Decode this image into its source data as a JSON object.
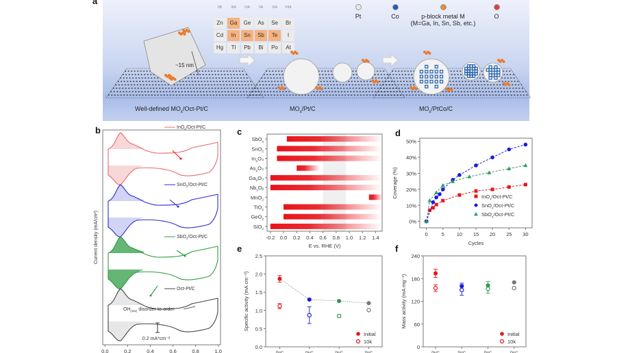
{
  "panel_a": {
    "label": "a",
    "periodic_table": {
      "headers": [
        "IIB",
        "IIIA",
        "IVA",
        "VA",
        "VIA",
        "VIIA"
      ],
      "rows": [
        [
          "Zn",
          "Ga",
          "Ge",
          "As",
          "Se",
          "Br"
        ],
        [
          "Cd",
          "In",
          "Sn",
          "Sb",
          "Te",
          "I"
        ],
        [
          "Hg",
          "Tl",
          "Pb",
          "Bi",
          "Po",
          "At"
        ]
      ],
      "highlighted": [
        "Ga",
        "In",
        "Sn",
        "Sb",
        "Te"
      ]
    },
    "legend": [
      {
        "symbol": "Pt",
        "color": "#e8e8e8"
      },
      {
        "symbol": "Co",
        "color": "#1f5fae"
      },
      {
        "symbol": "p-block metal M",
        "sub": "(M=Ga, In, Sn, Sb, etc.)",
        "color": "#e88a3a"
      },
      {
        "symbol": "O",
        "color": "#e23b3b"
      }
    ],
    "size_annotation": "~15 nm",
    "stages": [
      {
        "caption_pre": "Well-defined MO",
        "caption_sub": "x",
        "caption_post": "/Oct-Pt/C"
      },
      {
        "caption_pre": "MO",
        "caption_sub": "x",
        "caption_post": "/Pt/C"
      },
      {
        "caption_pre": "MO",
        "caption_sub": "x",
        "caption_post": "/PtCo/C"
      }
    ]
  },
  "chart_data": [
    {
      "panel": "b",
      "type": "line",
      "title": "",
      "xlabel": "",
      "ylabel": "Current density (mA/cm²)",
      "xlim": [
        0.0,
        1.0
      ],
      "xticks": [
        "0.0",
        "0.2",
        "0.4",
        "0.6",
        "0.8",
        "1.0"
      ],
      "series": [
        {
          "name": "InOx/Oct-Pt/C",
          "name_pre": "InO",
          "name_sub": "x",
          "name_post": "/Oct-Pt/C",
          "color": "#e8686a",
          "fill": "#f6d0d0"
        },
        {
          "name": "SnOx/Oct-Pt/C",
          "name_pre": "SnO",
          "name_sub": "x",
          "name_post": "/Oct-Pt/C",
          "color": "#2a2ad0",
          "fill": "#c9cdf3"
        },
        {
          "name": "SbOx/Oct-Pt/C",
          "name_pre": "SbO",
          "name_sub": "x",
          "name_post": "/Oct-Pt/C",
          "color": "#2e9a3e",
          "fill": "#4aa95c"
        },
        {
          "name": "Oct-Pt/C",
          "name_pre": "Oct-Pt/C",
          "name_sub": "",
          "name_post": "",
          "color": "#444444",
          "fill": "#e3e3e3"
        }
      ],
      "annotations": {
        "oh_label_pre": "OH",
        "oh_label_sub": "(111)",
        "oh_label_post": " disorder-to-order",
        "scale_bar": "0.2 mA*cm⁻²"
      }
    },
    {
      "panel": "c",
      "type": "bar",
      "xlabel": "E vs. RHE (V)",
      "xlim": [
        -0.25,
        1.5
      ],
      "xticks": [
        -0.2,
        0.0,
        0.2,
        0.4,
        0.6,
        0.8,
        1.0,
        1.2,
        1.4
      ],
      "shaded_region": [
        0.6,
        0.95
      ],
      "categories": [
        {
          "pre": "SbO",
          "sub": "x",
          "post": ""
        },
        {
          "pre": "SnO",
          "sub": "2",
          "post": ""
        },
        {
          "pre": "In",
          "sub": "2",
          "post": "O₃"
        },
        {
          "pre": "As",
          "sub": "2",
          "post": "O₃"
        },
        {
          "pre": "Ga",
          "sub": "2",
          "post": "O₃"
        },
        {
          "pre": "Nb",
          "sub": "x",
          "post": "Oᵧ"
        },
        {
          "pre": "MnO",
          "sub": "2",
          "post": ""
        },
        {
          "pre": "TiO",
          "sub": "2",
          "post": ""
        },
        {
          "pre": "GeO",
          "sub": "2",
          "post": ""
        },
        {
          "pre": "SiO",
          "sub": "2",
          "post": ""
        }
      ],
      "ranges": [
        [
          0.05,
          1.5
        ],
        [
          -0.1,
          1.5
        ],
        [
          -0.1,
          1.5
        ],
        [
          0.2,
          0.55
        ],
        [
          -0.2,
          1.5
        ],
        [
          -0.2,
          1.5
        ],
        [
          1.3,
          1.5
        ],
        [
          0.0,
          1.5
        ],
        [
          0.0,
          1.5
        ],
        [
          -0.2,
          1.5
        ]
      ],
      "color": "#e8141a"
    },
    {
      "panel": "d",
      "type": "scatter",
      "xlabel": "Cycles",
      "ylabel": "Coverage (%)",
      "xlim": [
        -2,
        32
      ],
      "ylim": [
        -4,
        52
      ],
      "xticks": [
        0,
        5,
        10,
        15,
        20,
        25,
        30
      ],
      "yticks": [
        "0%",
        "10%",
        "20%",
        "30%",
        "40%",
        "50%"
      ],
      "series": [
        {
          "name_pre": "InO",
          "name_sub": "x",
          "name_post": "/Oct-Pt/C",
          "marker": "square",
          "color": "#e8141a",
          "x": [
            0,
            1,
            2,
            3,
            5,
            10,
            15,
            20,
            25,
            30
          ],
          "y": [
            0,
            7,
            8.5,
            10.5,
            13,
            16.5,
            19,
            20,
            21.5,
            23
          ]
        },
        {
          "name_pre": "SnO",
          "name_sub": "x",
          "name_post": "/Oct-Pt/C",
          "marker": "circle",
          "color": "#1a1ae0",
          "x": [
            0,
            2,
            3,
            4,
            5,
            8,
            10,
            15,
            20,
            25,
            30
          ],
          "y": [
            0,
            12,
            15,
            17,
            20,
            26,
            29,
            35,
            40,
            45,
            48
          ]
        },
        {
          "name_pre": "SbO",
          "name_sub": "x",
          "name_post": "/Oct-Pt/C",
          "marker": "triangle",
          "color": "#2e9a5e",
          "x": [
            0,
            1,
            3,
            5,
            8,
            13,
            19,
            25,
            30
          ],
          "y": [
            0,
            13,
            18,
            22.5,
            25,
            28,
            30.5,
            33,
            35
          ]
        }
      ]
    },
    {
      "panel": "e",
      "type": "scatter",
      "xlabel": "",
      "ylabel": "Specific activity (mA cm⁻²)",
      "ylim": [
        0.0,
        2.5
      ],
      "yticks": [
        "0.0",
        "0.5",
        "1.0",
        "1.5",
        "2.0",
        "2.5"
      ],
      "categories": [
        "InOx/Oct-Pt/C",
        "SnOx/Oct-Pt/C",
        "SbOx/Oct-Pt/C",
        "Oct-Pt/C"
      ],
      "series": [
        {
          "name": "Initial",
          "filled": true,
          "values": [
            1.87,
            1.3,
            1.26,
            1.2
          ],
          "errors": [
            0.09,
            0.02,
            0.02,
            0.01
          ]
        },
        {
          "name": "10k",
          "filled": false,
          "values": [
            1.12,
            0.87,
            0.85,
            1.01
          ],
          "errors": [
            0.07,
            0.23,
            0.04,
            0.01
          ]
        }
      ],
      "colors": [
        "#e8141a",
        "#1a1ae0",
        "#2e9a4e",
        "#777777"
      ],
      "trend_line": true
    },
    {
      "panel": "f",
      "type": "scatter",
      "xlabel": "",
      "ylabel": "Mass activity (mA mg⁻¹)",
      "ylim": [
        0,
        240
      ],
      "yticks": [
        "0",
        "60",
        "120",
        "180",
        "240"
      ],
      "categories": [
        "InOx/Oct-Pt/C",
        "SnOx/Oct-Pt/C",
        "SbOx/Oct-Pt/C",
        "Oct-Pt/C"
      ],
      "series": [
        {
          "name": "Initial",
          "filled": true,
          "values": [
            194,
            160,
            162,
            170
          ],
          "errors": [
            11,
            8,
            10,
            2
          ]
        },
        {
          "name": "10k",
          "filled": false,
          "values": [
            155,
            150,
            153,
            155
          ],
          "errors": [
            9,
            14,
            11,
            2
          ]
        }
      ],
      "colors": [
        "#e8141a",
        "#1a1ae0",
        "#2e9a4e",
        "#777777"
      ]
    }
  ],
  "panel_labels": {
    "b": "b",
    "c": "c",
    "d": "d",
    "e": "e",
    "f": "f"
  }
}
